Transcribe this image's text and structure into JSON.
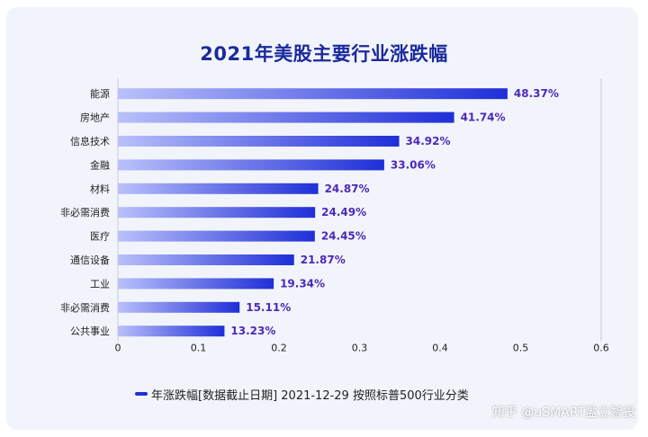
{
  "chart_data": {
    "type": "bar",
    "orientation": "horizontal",
    "title": "2021年美股主要行业涨跌幅",
    "categories": [
      "能源",
      "房地产",
      "信息技术",
      "金融",
      "材料",
      "非必需消费",
      "医疗",
      "通信设备",
      "工业",
      "非必需消费",
      "公共事业"
    ],
    "series": [
      {
        "name": "年涨跌幅[数据截止日期] 2021-12-29 按照标普500行业分类",
        "values": [
          0.4837,
          0.4174,
          0.3492,
          0.3306,
          0.2487,
          0.2449,
          0.2445,
          0.2187,
          0.1934,
          0.1511,
          0.1323
        ],
        "labels": [
          "48.37%",
          "41.74%",
          "34.92%",
          "33.06%",
          "24.87%",
          "24.49%",
          "24.45%",
          "21.87%",
          "19.34%",
          "15.11%",
          "13.23%"
        ]
      }
    ],
    "xlim": [
      0,
      0.6
    ],
    "xticks": [
      "0",
      "0.1",
      "0.2",
      "0.3",
      "0.4",
      "0.5",
      "0.6"
    ],
    "grid": false,
    "legend_position": "bottom",
    "colors": {
      "bar_start": "#b9c0fa",
      "bar_end": "#1f2fd8",
      "label": "#4a2bb8",
      "title": "#1b2a9c"
    }
  },
  "watermark": "知乎 @uSMART盈立智投"
}
